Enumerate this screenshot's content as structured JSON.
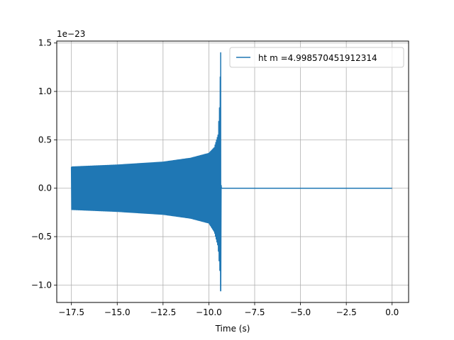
{
  "chart_data": {
    "type": "line",
    "title": "",
    "xlabel": "Time (s)",
    "ylabel": "",
    "y_offset_label": "1e−23",
    "xlim": [
      -18.3,
      0.9
    ],
    "ylim": [
      -1.18,
      1.52
    ],
    "x_ticks": [
      -17.5,
      -15.0,
      -12.5,
      -10.0,
      -7.5,
      -5.0,
      -2.5,
      0.0
    ],
    "x_tick_labels": [
      "−17.5",
      "−15.0",
      "−12.5",
      "−10.0",
      "−7.5",
      "−5.0",
      "−2.5",
      "0.0"
    ],
    "y_ticks": [
      -1.0,
      -0.5,
      0.0,
      0.5,
      1.0,
      1.5
    ],
    "y_tick_labels": [
      "−1.0",
      "−0.5",
      "0.0",
      "0.5",
      "1.0",
      "1.5"
    ],
    "grid": true,
    "legend_position": "top-right",
    "series": [
      {
        "name": "ht m =4.998570451912314",
        "color": "#1f77b4",
        "t_start": -17.5,
        "t_merger": -9.35,
        "t_end": 0.0,
        "envelope_upper": [
          [
            -17.5,
            0.22
          ],
          [
            -15.0,
            0.24
          ],
          [
            -12.5,
            0.27
          ],
          [
            -11.0,
            0.31
          ],
          [
            -10.0,
            0.36
          ],
          [
            -9.7,
            0.42
          ],
          [
            -9.5,
            0.55
          ],
          [
            -9.4,
            0.9
          ],
          [
            -9.36,
            1.4
          ]
        ],
        "envelope_lower": [
          [
            -17.5,
            -0.22
          ],
          [
            -15.0,
            -0.24
          ],
          [
            -12.5,
            -0.27
          ],
          [
            -11.0,
            -0.31
          ],
          [
            -10.0,
            -0.36
          ],
          [
            -9.7,
            -0.45
          ],
          [
            -9.5,
            -0.6
          ],
          [
            -9.4,
            -0.85
          ],
          [
            -9.36,
            -1.06
          ]
        ],
        "post_merger_value": 0.0
      }
    ]
  }
}
